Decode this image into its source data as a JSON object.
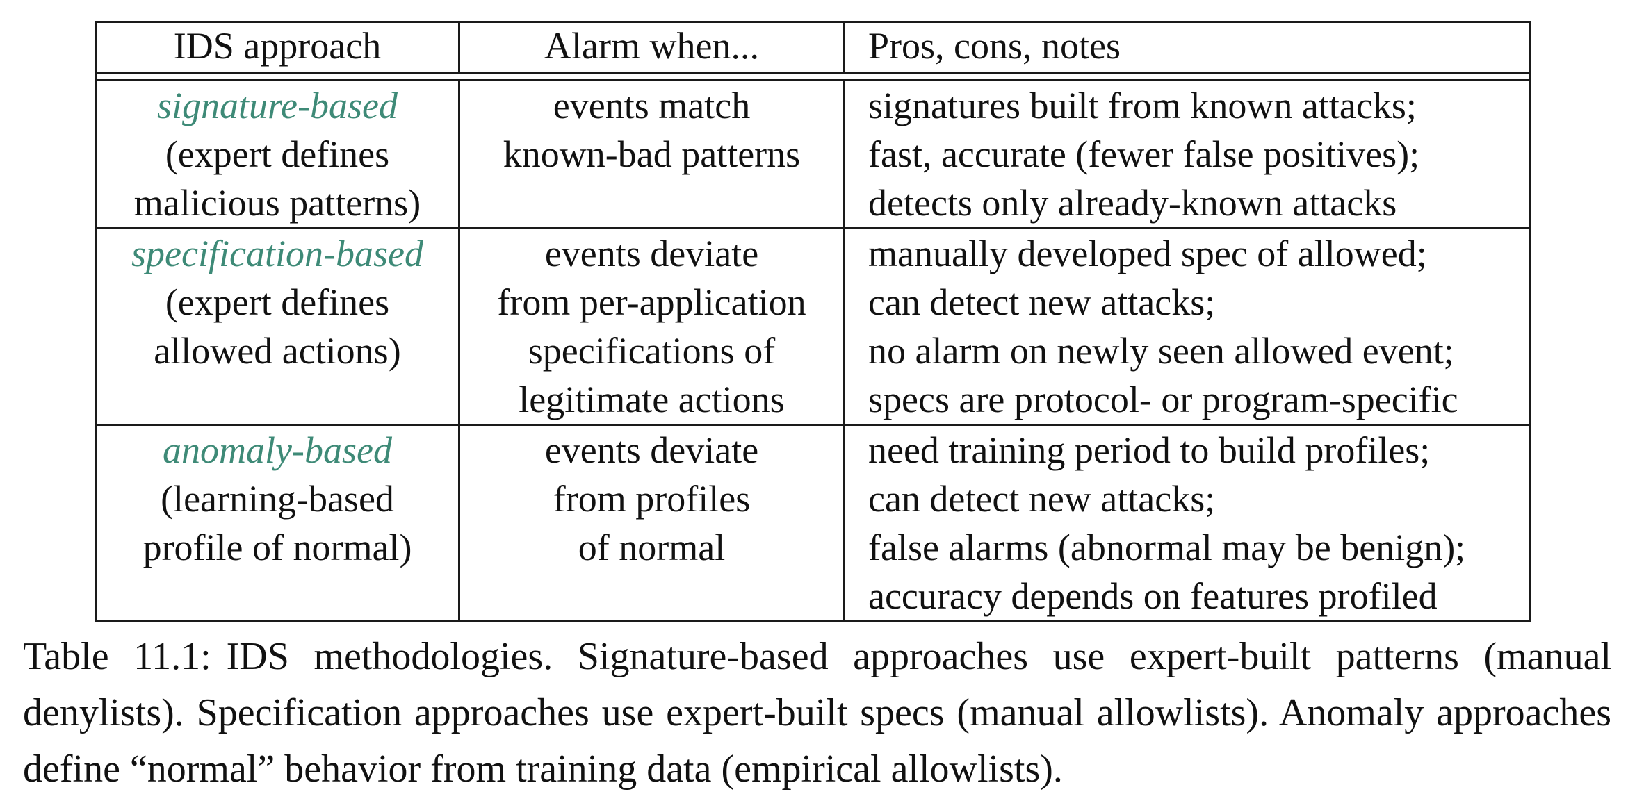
{
  "colors": {
    "approach_name": "#3e8a77",
    "text": "#111111",
    "rule": "#1a1a1a"
  },
  "table": {
    "headers": [
      "IDS approach",
      "Alarm when...",
      "Pros, cons, notes"
    ],
    "rows": [
      {
        "approach_name": "signature-based",
        "approach_desc": [
          "(expert defines",
          "malicious patterns)"
        ],
        "alarm": [
          "events match",
          "known-bad patterns"
        ],
        "notes": [
          "signatures built from known attacks;",
          "fast, accurate (fewer false positives);",
          "detects only already-known attacks"
        ]
      },
      {
        "approach_name": "specification-based",
        "approach_desc": [
          "(expert defines",
          "allowed actions)"
        ],
        "alarm": [
          "events deviate",
          "from per-application",
          "specifications of",
          "legitimate actions"
        ],
        "notes": [
          "manually developed spec of allowed;",
          "can detect new attacks;",
          "no alarm on newly seen allowed event;",
          "specs are protocol- or program-specific"
        ]
      },
      {
        "approach_name": "anomaly-based",
        "approach_desc": [
          "(learning-based",
          "profile of normal)"
        ],
        "alarm": [
          "events deviate",
          "from profiles",
          "of normal"
        ],
        "notes": [
          "need training period to build profiles;",
          "can detect new attacks;",
          "false alarms (abnormal may be benign);",
          "accuracy depends on features profiled"
        ]
      }
    ]
  },
  "caption": {
    "label": "Table 11.1:",
    "text": "IDS methodologies. Signature-based approaches use expert-built patterns (manual denylists). Specification approaches use expert-built specs (manual allowlists). Anomaly approaches define “normal” behavior from training data (empirical allowlists)."
  }
}
